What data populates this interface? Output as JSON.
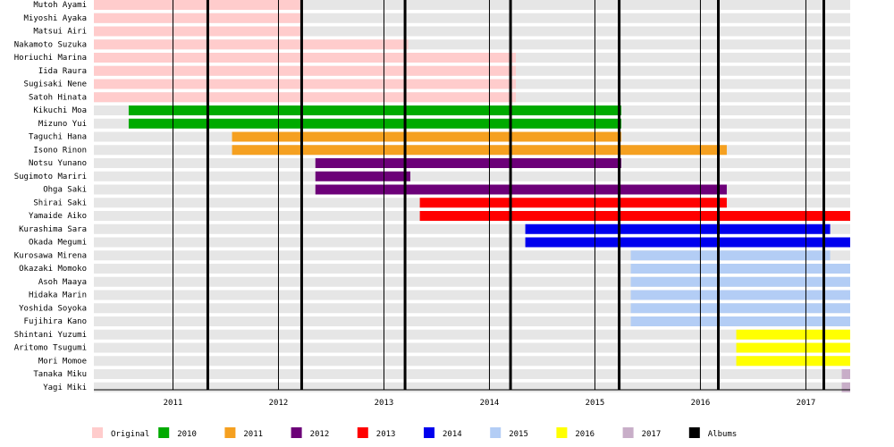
{
  "chart_data": {
    "type": "bar",
    "orientation": "horizontal",
    "title": "",
    "xlabel": "",
    "ylabel": "",
    "x_range": [
      2010.25,
      2017.42
    ],
    "x_ticks": [
      2011,
      2012,
      2013,
      2014,
      2015,
      2016,
      2017
    ],
    "x_tick_labels": [
      "2011",
      "2012",
      "2013",
      "2014",
      "2015",
      "2016",
      "2017"
    ],
    "grid": "vertical lines at each year",
    "legend_position": "bottom",
    "albums": [
      2011.33,
      2012.22,
      2013.2,
      2014.2,
      2015.23,
      2016.17,
      2017.17
    ],
    "groups": [
      {
        "name": "Original",
        "color": "#ffcccc"
      },
      {
        "name": "2010",
        "color": "#00aa00"
      },
      {
        "name": "2011",
        "color": "#f5a020"
      },
      {
        "name": "2012",
        "color": "#6c0078"
      },
      {
        "name": "2013",
        "color": "#ff0000"
      },
      {
        "name": "2014",
        "color": "#0000ee"
      },
      {
        "name": "2015",
        "color": "#b3cdf5"
      },
      {
        "name": "2016",
        "color": "#ffff00"
      },
      {
        "name": "2017",
        "color": "#c8aec8"
      },
      {
        "name": "Albums",
        "color": "#000000"
      }
    ],
    "members": [
      {
        "name": "Mutoh Ayami",
        "group": "Original",
        "start": 2010.25,
        "end": 2012.22
      },
      {
        "name": "Miyoshi Ayaka",
        "group": "Original",
        "start": 2010.25,
        "end": 2012.22
      },
      {
        "name": "Matsui Airi",
        "group": "Original",
        "start": 2010.25,
        "end": 2012.22
      },
      {
        "name": "Nakamoto Suzuka",
        "group": "Original",
        "start": 2010.25,
        "end": 2013.23
      },
      {
        "name": "Horiuchi Marina",
        "group": "Original",
        "start": 2010.25,
        "end": 2014.25
      },
      {
        "name": "Iida Raura",
        "group": "Original",
        "start": 2010.25,
        "end": 2014.25
      },
      {
        "name": "Sugisaki Nene",
        "group": "Original",
        "start": 2010.25,
        "end": 2014.25
      },
      {
        "name": "Satoh Hinata",
        "group": "Original",
        "start": 2010.25,
        "end": 2014.25
      },
      {
        "name": "Kikuchi Moa",
        "group": "2010",
        "start": 2010.58,
        "end": 2015.25
      },
      {
        "name": "Mizuno Yui",
        "group": "2010",
        "start": 2010.58,
        "end": 2015.25
      },
      {
        "name": "Taguchi Hana",
        "group": "2011",
        "start": 2011.56,
        "end": 2015.25
      },
      {
        "name": "Isono Rinon",
        "group": "2011",
        "start": 2011.56,
        "end": 2016.25
      },
      {
        "name": "Notsu Yunano",
        "group": "2012",
        "start": 2012.35,
        "end": 2015.25
      },
      {
        "name": "Sugimoto Mariri",
        "group": "2012",
        "start": 2012.35,
        "end": 2013.25
      },
      {
        "name": "Ohga Saki",
        "group": "2012",
        "start": 2012.35,
        "end": 2016.25
      },
      {
        "name": "Shirai Saki",
        "group": "2013",
        "start": 2013.34,
        "end": 2016.25
      },
      {
        "name": "Yamaide Aiko",
        "group": "2013",
        "start": 2013.34,
        "end": 2017.42
      },
      {
        "name": "Kurashima Sara",
        "group": "2014",
        "start": 2014.34,
        "end": 2017.23
      },
      {
        "name": "Okada Megumi",
        "group": "2014",
        "start": 2014.34,
        "end": 2017.42
      },
      {
        "name": "Kurosawa Mirena",
        "group": "2015",
        "start": 2015.34,
        "end": 2017.23
      },
      {
        "name": "Okazaki Momoko",
        "group": "2015",
        "start": 2015.34,
        "end": 2017.42
      },
      {
        "name": "Asoh Maaya",
        "group": "2015",
        "start": 2015.34,
        "end": 2017.42
      },
      {
        "name": "Hidaka Marin",
        "group": "2015",
        "start": 2015.34,
        "end": 2017.42
      },
      {
        "name": "Yoshida Soyoka",
        "group": "2015",
        "start": 2015.34,
        "end": 2017.42
      },
      {
        "name": "Fujihira Kano",
        "group": "2015",
        "start": 2015.34,
        "end": 2017.42
      },
      {
        "name": "Shintani Yuzumi",
        "group": "2016",
        "start": 2016.34,
        "end": 2017.42
      },
      {
        "name": "Aritomo Tsugumi",
        "group": "2016",
        "start": 2016.34,
        "end": 2017.42
      },
      {
        "name": "Mori Momoe",
        "group": "2016",
        "start": 2016.34,
        "end": 2017.42
      },
      {
        "name": "Tanaka Miku",
        "group": "2017",
        "start": 2017.34,
        "end": 2017.42
      },
      {
        "name": "Yagi Miki",
        "group": "2017",
        "start": 2017.34,
        "end": 2017.42
      }
    ]
  }
}
